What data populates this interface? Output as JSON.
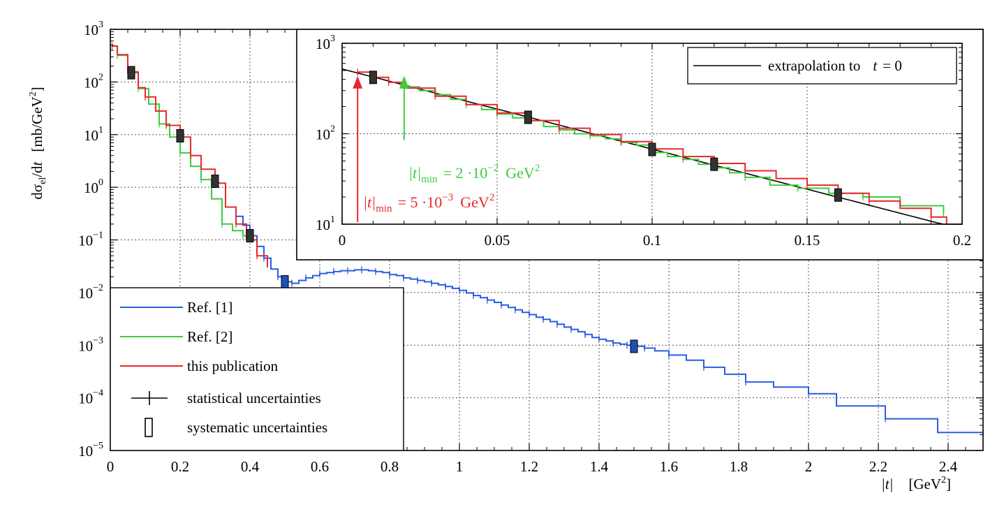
{
  "chart_data": [
    {
      "id": "main",
      "type": "line",
      "xlim": [
        0,
        2.5
      ],
      "ylim": [
        1e-05,
        1000
      ],
      "y_scale": "log",
      "grid": true,
      "x_ticks": [
        {
          "v": 0,
          "label": "0"
        },
        {
          "v": 0.2,
          "label": "0.2"
        },
        {
          "v": 0.4,
          "label": "0.4"
        },
        {
          "v": 0.6,
          "label": "0.6"
        },
        {
          "v": 0.8,
          "label": "0.8"
        },
        {
          "v": 1.0,
          "label": "1"
        },
        {
          "v": 1.2,
          "label": "1.2"
        },
        {
          "v": 1.4,
          "label": "1.4"
        },
        {
          "v": 1.6,
          "label": "1.6"
        },
        {
          "v": 1.8,
          "label": "1.8"
        },
        {
          "v": 2.0,
          "label": "2"
        },
        {
          "v": 2.2,
          "label": "2.2"
        },
        {
          "v": 2.4,
          "label": "2.4"
        }
      ],
      "y_ticks": [
        {
          "exp": 3,
          "base": "10",
          "sup": "3"
        },
        {
          "exp": 2,
          "base": "10",
          "sup": "2"
        },
        {
          "exp": 1,
          "base": "10",
          "sup": "1"
        },
        {
          "exp": 0,
          "base": "10",
          "sup": "0"
        },
        {
          "exp": -1,
          "base": "10",
          "sup": "−1"
        },
        {
          "exp": -2,
          "base": "10",
          "sup": "−2"
        },
        {
          "exp": -3,
          "base": "10",
          "sup": "−3"
        },
        {
          "exp": -4,
          "base": "10",
          "sup": "−4"
        },
        {
          "exp": -5,
          "base": "10",
          "sup": "−5"
        }
      ],
      "xlabel": {
        "abs_t": "|t|",
        "unit_open": "[GeV",
        "unit_sup": "2",
        "unit_close": "]"
      },
      "ylabel": {
        "d1": "dσ",
        "sub": "el",
        "d2": "/d",
        "t": "t",
        "unit_open": "[mb/GeV",
        "unit_sup": "2",
        "unit_close": "]"
      },
      "legend_position": "lower-left",
      "legend": [
        {
          "key": "ref1",
          "label": "Ref. [1]"
        },
        {
          "key": "ref2",
          "label": "Ref. [2]"
        },
        {
          "key": "pub",
          "label": "this publication"
        },
        {
          "key": "stat",
          "label": "statistical uncertainties"
        },
        {
          "key": "sys",
          "label": "systematic uncertainties"
        }
      ],
      "series": [
        {
          "key": "ref1",
          "name": "Ref. [1]",
          "color": "#2b5ce6",
          "x": [
            0.36,
            0.38,
            0.4,
            0.42,
            0.44,
            0.46,
            0.48,
            0.5,
            0.52,
            0.54,
            0.56,
            0.58,
            0.6,
            0.62,
            0.64,
            0.66,
            0.68,
            0.7,
            0.72,
            0.74,
            0.76,
            0.78,
            0.8,
            0.82,
            0.84,
            0.86,
            0.88,
            0.9,
            0.92,
            0.94,
            0.96,
            0.98,
            1.0,
            1.02,
            1.04,
            1.06,
            1.08,
            1.1,
            1.12,
            1.14,
            1.16,
            1.18,
            1.2,
            1.22,
            1.24,
            1.26,
            1.28,
            1.3,
            1.32,
            1.34,
            1.36,
            1.38,
            1.4,
            1.42,
            1.44,
            1.46,
            1.48,
            1.5,
            1.53,
            1.56,
            1.6,
            1.65,
            1.7,
            1.76,
            1.82,
            1.9,
            2.0,
            2.08,
            2.22,
            2.37,
            2.5
          ],
          "y": [
            0.28,
            0.19,
            0.12,
            0.075,
            0.045,
            0.028,
            0.02,
            0.016,
            0.015,
            0.017,
            0.019,
            0.021,
            0.023,
            0.024,
            0.025,
            0.026,
            0.026,
            0.027,
            0.027,
            0.026,
            0.025,
            0.024,
            0.022,
            0.021,
            0.019,
            0.018,
            0.017,
            0.016,
            0.015,
            0.014,
            0.013,
            0.012,
            0.011,
            0.0098,
            0.0088,
            0.008,
            0.0072,
            0.0065,
            0.0058,
            0.0052,
            0.0047,
            0.0042,
            0.0038,
            0.0034,
            0.0031,
            0.0028,
            0.0025,
            0.0022,
            0.002,
            0.0018,
            0.0016,
            0.0014,
            0.0013,
            0.0012,
            0.0011,
            0.00105,
            0.001,
            0.00095,
            0.00088,
            0.00078,
            0.00065,
            0.00052,
            0.00038,
            0.00028,
            0.0002,
            0.00016,
            0.00012,
            7e-05,
            4e-05,
            2.2e-05,
            2.2e-05
          ]
        },
        {
          "key": "ref2",
          "name": "Ref. [2]",
          "color": "#3ecb3e",
          "x": [
            0.02,
            0.05,
            0.08,
            0.11,
            0.14,
            0.17,
            0.2,
            0.23,
            0.26,
            0.29,
            0.32,
            0.35,
            0.38,
            0.41
          ],
          "y": [
            320,
            150,
            75,
            38,
            16,
            9,
            4.5,
            2.5,
            1.4,
            0.6,
            0.2,
            0.15,
            0.12,
            0.11
          ]
        },
        {
          "key": "pub",
          "name": "this publication",
          "color": "#e8282d",
          "x": [
            0.005,
            0.02,
            0.05,
            0.08,
            0.1,
            0.13,
            0.16,
            0.2,
            0.23,
            0.26,
            0.3,
            0.33,
            0.36,
            0.39,
            0.42,
            0.45
          ],
          "y": [
            480,
            330,
            155,
            78,
            52,
            28,
            15,
            9,
            4,
            2.2,
            1.2,
            0.42,
            0.2,
            0.1,
            0.05,
            0.03
          ]
        }
      ],
      "systematic_boxes": [
        {
          "x": 0.06,
          "y": 150
        },
        {
          "x": 0.2,
          "y": 9.5
        },
        {
          "x": 0.3,
          "y": 1.3
        },
        {
          "x": 0.4,
          "y": 0.12
        },
        {
          "x": 0.5,
          "y": 0.016
        },
        {
          "x": 1.5,
          "y": 0.00095
        }
      ]
    },
    {
      "id": "inset",
      "type": "line",
      "xlim": [
        0,
        0.2
      ],
      "ylim": [
        10,
        1000
      ],
      "y_scale": "log",
      "grid": true,
      "x_ticks": [
        {
          "v": 0,
          "label": "0"
        },
        {
          "v": 0.05,
          "label": "0.05"
        },
        {
          "v": 0.1,
          "label": "0.1"
        },
        {
          "v": 0.15,
          "label": "0.15"
        },
        {
          "v": 0.2,
          "label": "0.2"
        }
      ],
      "y_ticks": [
        {
          "exp": 3,
          "base": "10",
          "sup": "3"
        },
        {
          "exp": 2,
          "base": "10",
          "sup": "2"
        },
        {
          "exp": 1,
          "base": "10",
          "sup": "1"
        }
      ],
      "legend_position": "top-right",
      "legend_label": {
        "text": "extrapolation to",
        "t": "t",
        "eq": "= 0"
      },
      "fit": {
        "A": 520,
        "b": 20.4,
        "color": "#000000"
      },
      "series": [
        {
          "key": "ref2",
          "color": "#3ecb3e",
          "x": [
            0.02,
            0.025,
            0.03,
            0.035,
            0.04,
            0.045,
            0.05,
            0.055,
            0.06,
            0.065,
            0.07,
            0.075,
            0.08,
            0.085,
            0.09,
            0.095,
            0.1,
            0.105,
            0.11,
            0.115,
            0.12,
            0.125,
            0.13,
            0.138,
            0.147,
            0.157,
            0.168,
            0.18,
            0.194
          ],
          "y": [
            330,
            300,
            270,
            240,
            210,
            185,
            165,
            150,
            140,
            120,
            110,
            100,
            95,
            88,
            80,
            75,
            62,
            56,
            52,
            46,
            42,
            37,
            33,
            27,
            25,
            22,
            20,
            16,
            13
          ]
        },
        {
          "key": "pub",
          "color": "#e8282d",
          "x": [
            0.005,
            0.01,
            0.015,
            0.02,
            0.03,
            0.04,
            0.05,
            0.06,
            0.07,
            0.08,
            0.09,
            0.1,
            0.11,
            0.12,
            0.13,
            0.14,
            0.15,
            0.16,
            0.17,
            0.18,
            0.19,
            0.195
          ],
          "y": [
            480,
            420,
            370,
            320,
            260,
            210,
            170,
            140,
            115,
            98,
            82,
            68,
            56,
            47,
            39,
            32,
            27,
            22,
            18,
            15,
            12,
            10
          ]
        }
      ],
      "systematic_boxes": [
        {
          "x": 0.01,
          "y": 420
        },
        {
          "x": 0.06,
          "y": 152
        },
        {
          "x": 0.1,
          "y": 67
        },
        {
          "x": 0.12,
          "y": 46
        },
        {
          "x": 0.16,
          "y": 21
        }
      ],
      "annotations": [
        {
          "key": "green",
          "color": "#3ecb3e",
          "x": 0.02,
          "tail_y": 85,
          "head_y": 420,
          "abs_t": "|t|",
          "sub": "min",
          "eq": "= 2 ·10",
          "sup": "−2",
          "unit": "GeV",
          "unit_sup": "2"
        },
        {
          "key": "red",
          "color": "#e8282d",
          "x": 0.005,
          "tail_y": 10.5,
          "head_y": 420,
          "abs_t": "|t|",
          "sub": "min",
          "eq": "= 5 ·10",
          "sup": "−3",
          "unit": "GeV",
          "unit_sup": "2"
        }
      ]
    }
  ]
}
